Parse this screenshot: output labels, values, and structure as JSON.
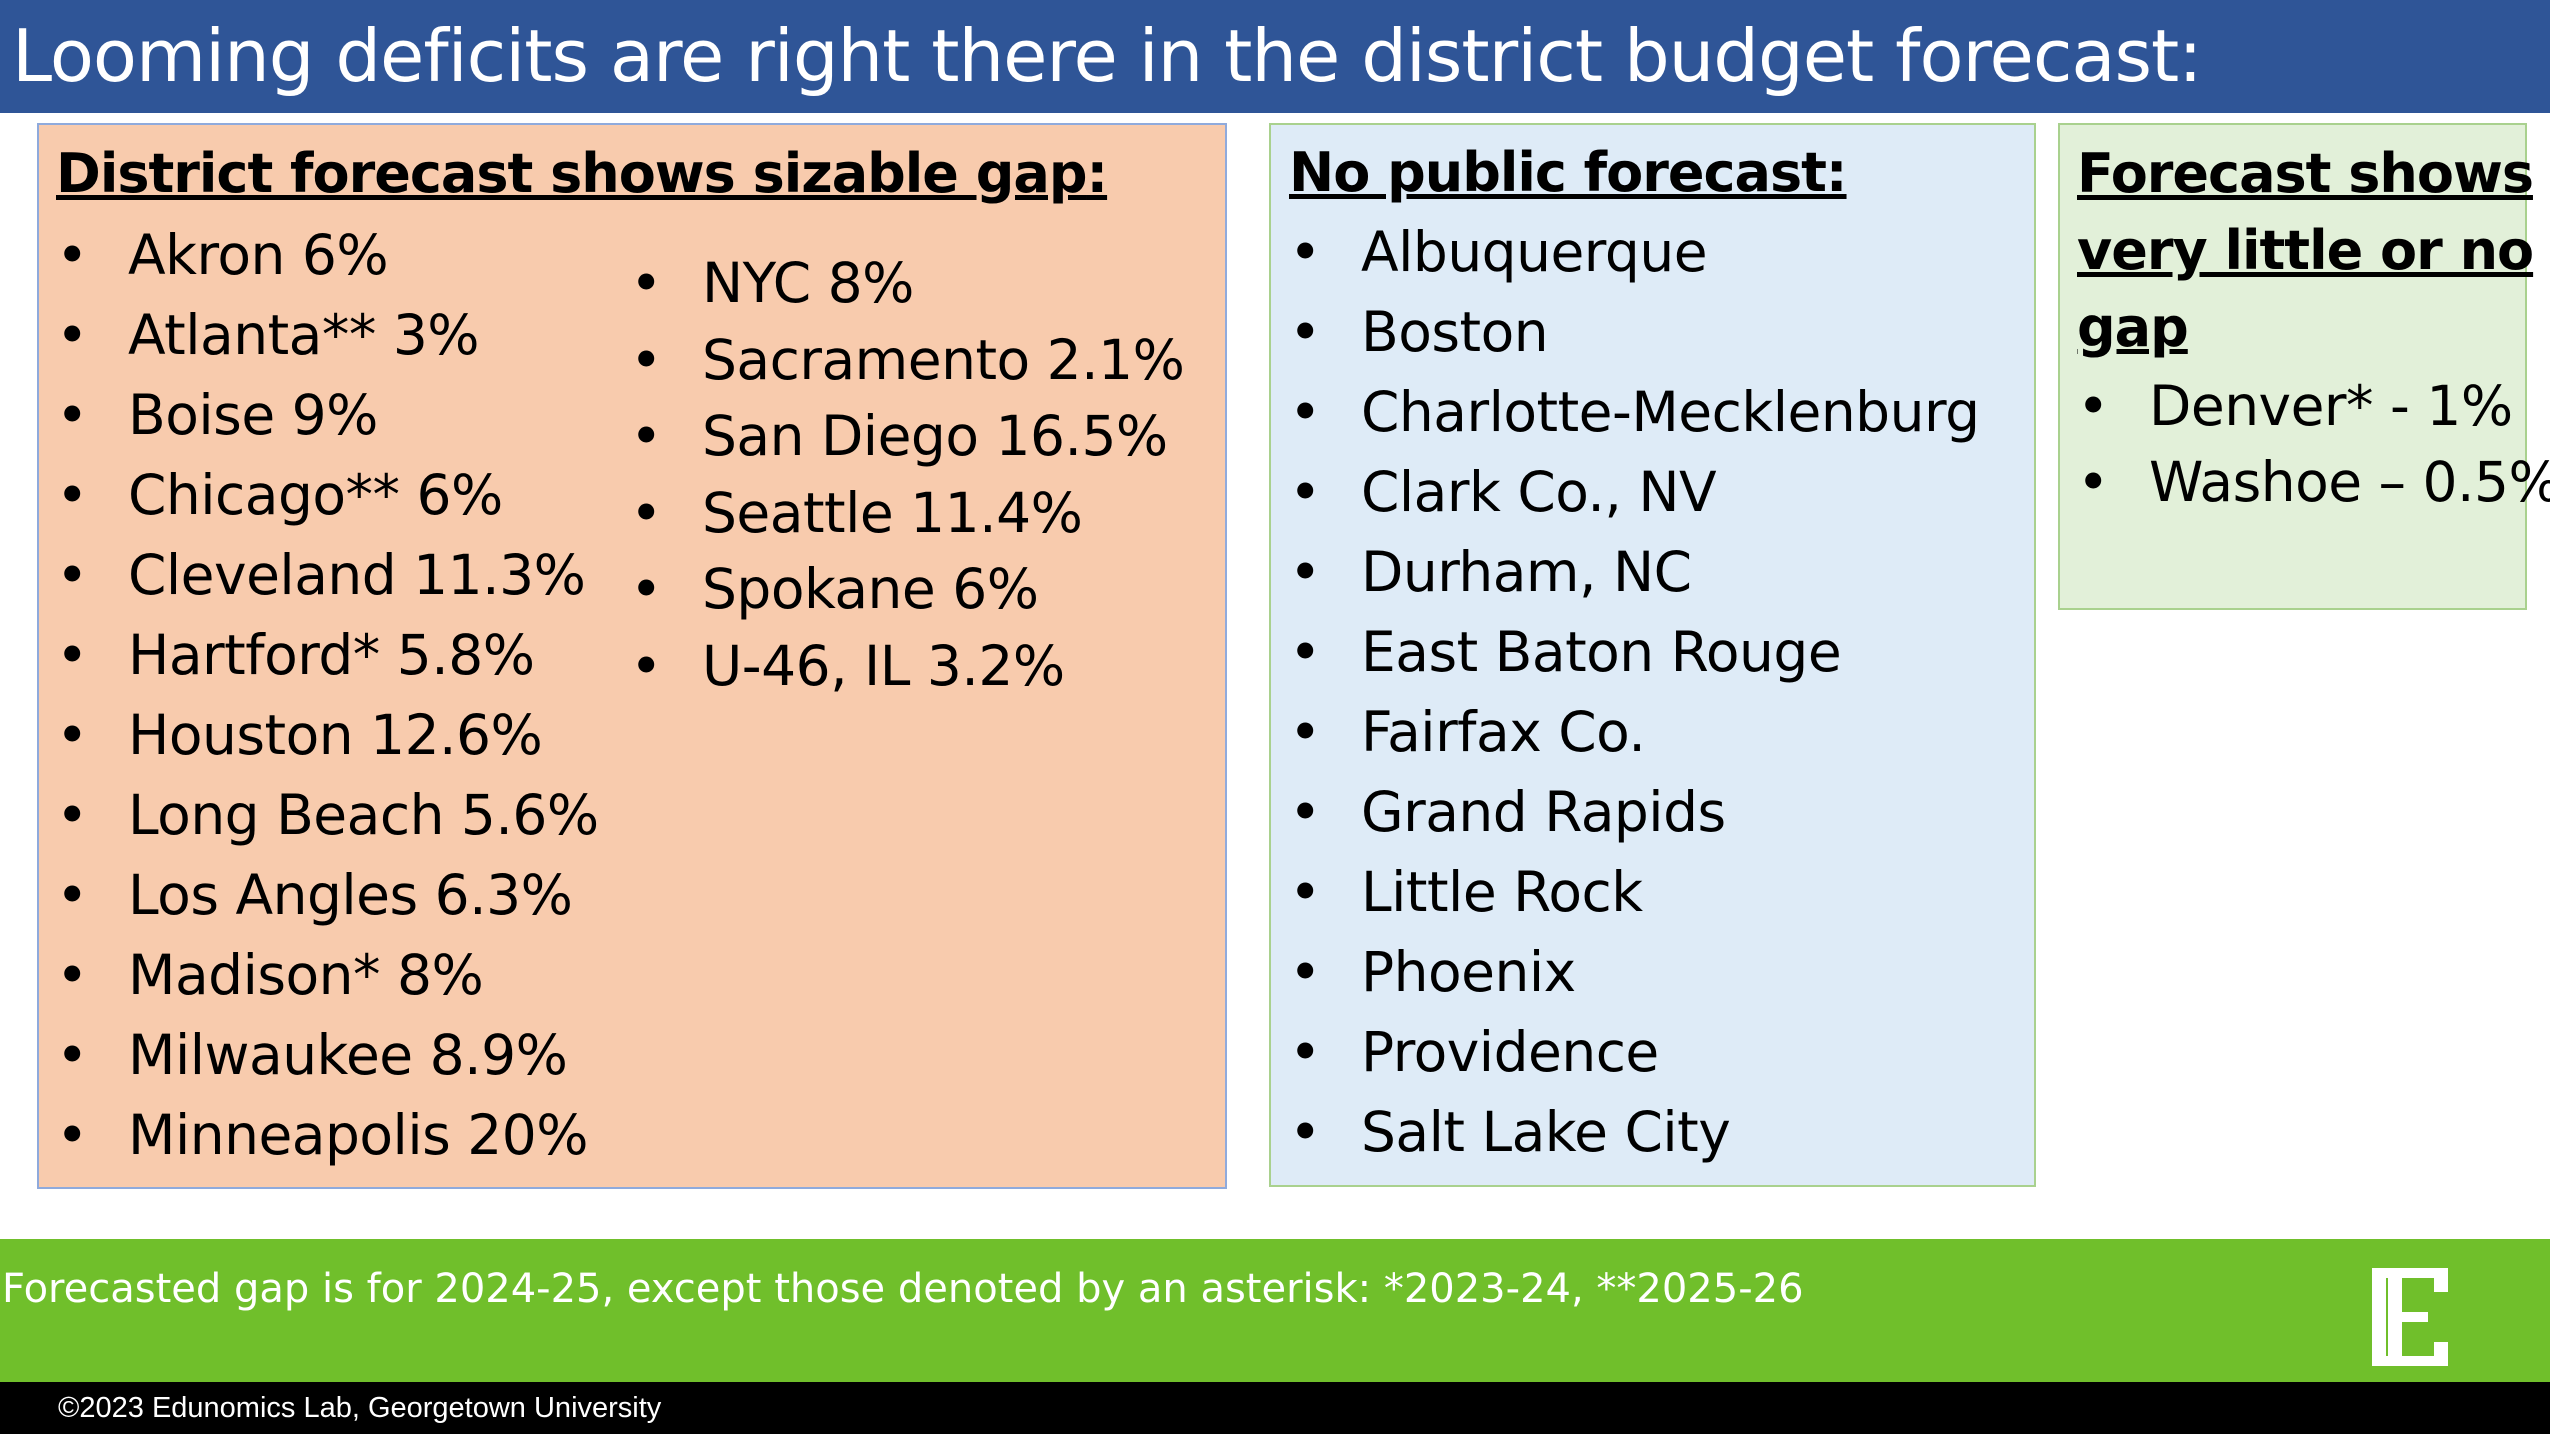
{
  "title": "Looming deficits are right there in the district budget forecast:",
  "sizable_gap": {
    "heading": "District forecast shows sizable gap",
    "heading_suffix": ":",
    "col1": [
      "Akron 6%",
      "Atlanta**  3%",
      "Boise  9%",
      "Chicago** 6%",
      "Cleveland 11.3%",
      "Hartford* 5.8%",
      "Houston 12.6%",
      "Long Beach 5.6%",
      "Los Angles  6.3%",
      "Madison* 8%",
      "Milwaukee  8.9%",
      "Minneapolis 20%"
    ],
    "col2": [
      "NYC  8%",
      "Sacramento  2.1%",
      "San Diego  16.5%",
      "Seattle  11.4%",
      "Spokane  6%",
      "U-46, IL 3.2%"
    ]
  },
  "no_forecast": {
    "heading": "No public forecast:",
    "items": [
      "Albuquerque",
      "Boston",
      "Charlotte-Mecklenburg",
      "Clark Co., NV",
      "Durham, NC",
      "East Baton Rouge",
      "Fairfax Co.",
      "Grand Rapids",
      "Little Rock",
      "Phoenix",
      "Providence",
      "Salt Lake City"
    ]
  },
  "little_gap": {
    "heading_lines": [
      "Forecast shows",
      "very little or no",
      "gap"
    ],
    "items": [
      "Denver* - 1%",
      "Washoe – 0.5%"
    ]
  },
  "footer": {
    "note": "Forecasted gap is for 2024-25, except those denoted by an asterisk: *2023-24,  **2025-26",
    "logo_icon": "edunomics-e-logo-icon",
    "copyright": "©2023 Edunomics Lab, Georgetown University"
  },
  "colors": {
    "title_bar": "#2f5597",
    "sizable_gap_box": "#f8cbad",
    "no_forecast_box": "#deebf7",
    "little_gap_box": "#e2f0d9",
    "footer_bar": "#70bf2b",
    "copyright_bar": "#000000"
  }
}
